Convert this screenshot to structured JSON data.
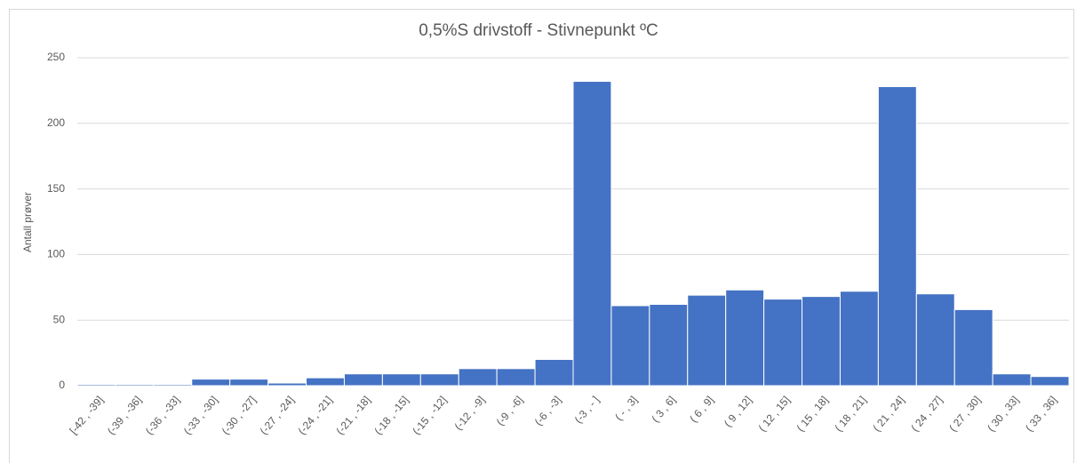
{
  "chart_data": {
    "type": "bar",
    "title": "0,5%S drivstoff - Stivnepunkt ºC",
    "y_label": "Antall prøver",
    "categories": [
      "[-42 , -39]",
      "(-39 , -36]",
      "(-36 , -33]",
      "(-33 , -30]",
      "(-30 , -27]",
      "(-27 , -24]",
      "(-24 , -21]",
      "(-21 , -18]",
      "(-18 , -15]",
      "(-15 , -12]",
      "(-12 , -9]",
      "(-9 , -6]",
      "(-6 , -3]",
      "(-3 , - ]",
      "( - , 3]",
      "( 3 , 6]",
      "( 6 , 9]",
      "( 9 , 12]",
      "( 12 , 15]",
      "( 15 , 18]",
      "( 18 , 21]",
      "( 21 , 24]",
      "( 24 , 27]",
      "( 27 , 30]",
      "( 30 , 33]",
      "( 33 , 36]"
    ],
    "values": [
      1,
      1,
      1,
      5,
      5,
      2,
      6,
      9,
      9,
      9,
      13,
      13,
      20,
      232,
      61,
      62,
      69,
      73,
      66,
      68,
      72,
      228,
      70,
      58,
      9,
      7
    ],
    "color": "#4472c4",
    "ylim": [
      0,
      250
    ],
    "yticks": [
      0,
      50,
      100,
      150,
      200,
      250
    ],
    "grid": true
  }
}
